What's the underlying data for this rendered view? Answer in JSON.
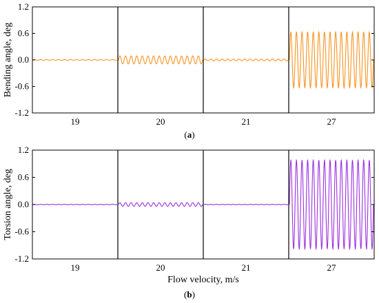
{
  "chart_data": [
    {
      "type": "line",
      "panel_label_letter": "a",
      "ylabel": "Bending angle, deg",
      "xlabel": "",
      "ylim": [
        -1.2,
        1.2
      ],
      "yticks": [
        "1.2",
        "0.6",
        "0.0",
        "-0.6",
        "-1.2"
      ],
      "grid": false,
      "color": "#f7931e",
      "segments": [
        {
          "label": "19",
          "amplitude": 0.01,
          "cycles": 14
        },
        {
          "label": "20",
          "amplitude": 0.09,
          "cycles": 15
        },
        {
          "label": "21",
          "amplitude": 0.02,
          "cycles": 15
        },
        {
          "label": "27",
          "amplitude": 0.63,
          "cycles": 15
        }
      ]
    },
    {
      "type": "line",
      "panel_label_letter": "b",
      "ylabel": "Torsion angle, deg",
      "xlabel": "Flow velocity, m/s",
      "ylim": [
        -1.2,
        1.2
      ],
      "yticks": [
        "1.2",
        "0.6",
        "0.0",
        "-0.6",
        "-1.2"
      ],
      "grid": false,
      "color": "#9b30e0",
      "segments": [
        {
          "label": "19",
          "amplitude": 0.005,
          "cycles": 14
        },
        {
          "label": "20",
          "amplitude": 0.04,
          "cycles": 15
        },
        {
          "label": "21",
          "amplitude": 0.005,
          "cycles": 15
        },
        {
          "label": "27",
          "amplitude": 0.98,
          "cycles": 15
        }
      ]
    }
  ]
}
